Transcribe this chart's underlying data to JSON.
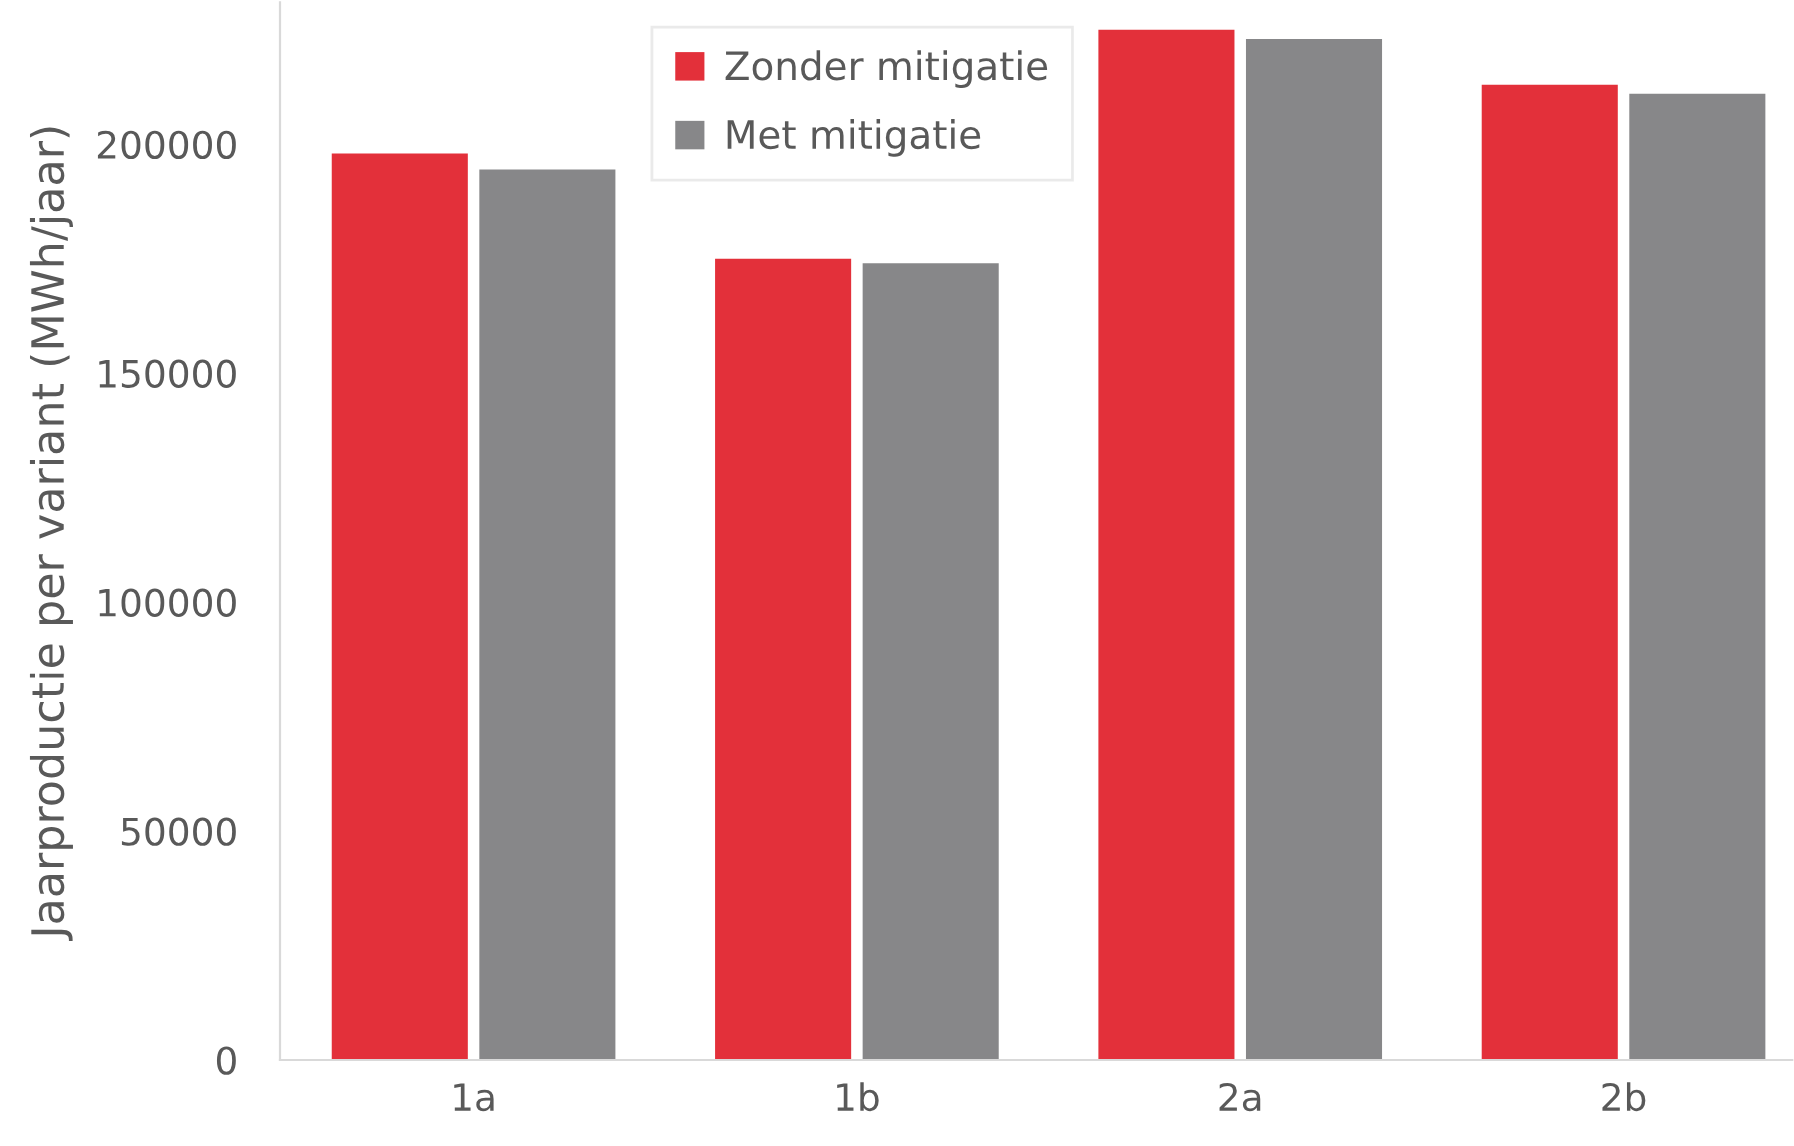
{
  "chart_data": {
    "type": "bar",
    "ylabel": "Jaarproductie per variant (MWh/jaar)",
    "categories": [
      "1a",
      "1b",
      "2a",
      "2b"
    ],
    "series": [
      {
        "name": "Zonder mitigatie",
        "color": "#e3303a",
        "values": [
          198000,
          175000,
          225000,
          213000
        ]
      },
      {
        "name": "Met mitigatie",
        "color": "#878789",
        "values": [
          194500,
          174000,
          223000,
          211000
        ]
      }
    ],
    "ylim": [
      0,
      231000
    ],
    "yticks": [
      0,
      50000,
      100000,
      150000,
      200000
    ],
    "grid": false,
    "legend": "top"
  }
}
